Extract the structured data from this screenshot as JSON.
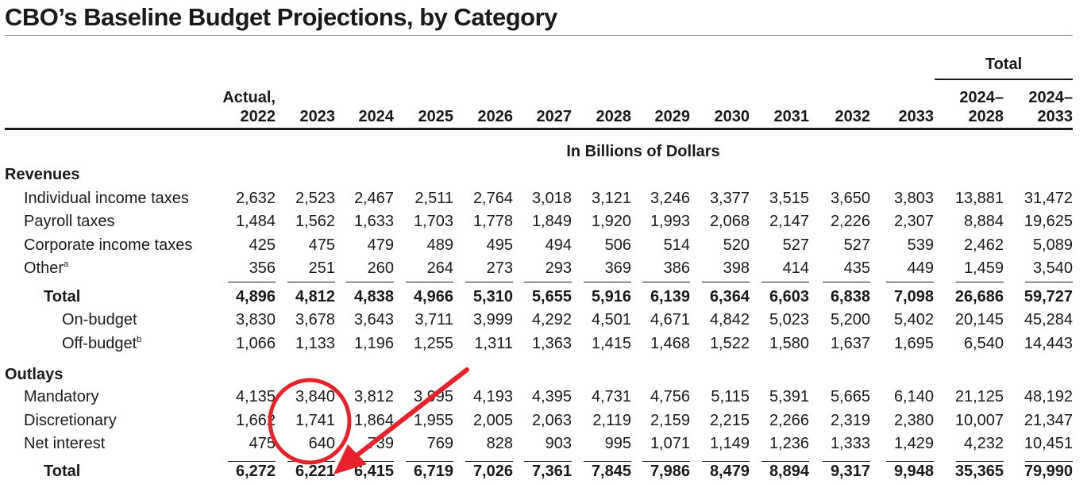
{
  "title": "CBO’s Baseline Budget Projections, by Category",
  "header": {
    "total_group": "Total",
    "columns": [
      {
        "line1": "Actual,",
        "line2": "2022"
      },
      {
        "line1": "",
        "line2": "2023"
      },
      {
        "line1": "",
        "line2": "2024"
      },
      {
        "line1": "",
        "line2": "2025"
      },
      {
        "line1": "",
        "line2": "2026"
      },
      {
        "line1": "",
        "line2": "2027"
      },
      {
        "line1": "",
        "line2": "2028"
      },
      {
        "line1": "",
        "line2": "2029"
      },
      {
        "line1": "",
        "line2": "2030"
      },
      {
        "line1": "",
        "line2": "2031"
      },
      {
        "line1": "",
        "line2": "2032"
      },
      {
        "line1": "",
        "line2": "2033"
      },
      {
        "line1": "2024–",
        "line2": "2028"
      },
      {
        "line1": "2024–",
        "line2": "2033"
      }
    ],
    "unit": "In Billions of Dollars"
  },
  "sections": {
    "revenues": "Revenues",
    "outlays": "Outlays"
  },
  "rows": {
    "individual_income_taxes": {
      "label": "Individual income taxes",
      "values": [
        "2,632",
        "2,523",
        "2,467",
        "2,511",
        "2,764",
        "3,018",
        "3,121",
        "3,246",
        "3,377",
        "3,515",
        "3,650",
        "3,803",
        "13,881",
        "31,472"
      ]
    },
    "payroll_taxes": {
      "label": "Payroll taxes",
      "values": [
        "1,484",
        "1,562",
        "1,633",
        "1,703",
        "1,778",
        "1,849",
        "1,920",
        "1,993",
        "2,068",
        "2,147",
        "2,226",
        "2,307",
        "8,884",
        "19,625"
      ]
    },
    "corporate_income_taxes": {
      "label": "Corporate income taxes",
      "values": [
        "425",
        "475",
        "479",
        "489",
        "495",
        "494",
        "506",
        "514",
        "520",
        "527",
        "527",
        "539",
        "2,462",
        "5,089"
      ]
    },
    "other": {
      "label": "Other",
      "note": "a",
      "values": [
        "356",
        "251",
        "260",
        "264",
        "273",
        "293",
        "369",
        "386",
        "398",
        "414",
        "435",
        "449",
        "1,459",
        "3,540"
      ]
    },
    "revenues_total": {
      "label": "Total",
      "values": [
        "4,896",
        "4,812",
        "4,838",
        "4,966",
        "5,310",
        "5,655",
        "5,916",
        "6,139",
        "6,364",
        "6,603",
        "6,838",
        "7,098",
        "26,686",
        "59,727"
      ]
    },
    "on_budget": {
      "label": "On-budget",
      "values": [
        "3,830",
        "3,678",
        "3,643",
        "3,711",
        "3,999",
        "4,292",
        "4,501",
        "4,671",
        "4,842",
        "5,023",
        "5,200",
        "5,402",
        "20,145",
        "45,284"
      ]
    },
    "off_budget": {
      "label": "Off-budget",
      "note": "b",
      "values": [
        "1,066",
        "1,133",
        "1,196",
        "1,255",
        "1,311",
        "1,363",
        "1,415",
        "1,468",
        "1,522",
        "1,580",
        "1,637",
        "1,695",
        "6,540",
        "14,443"
      ]
    },
    "mandatory": {
      "label": "Mandatory",
      "values": [
        "4,135",
        "3,840",
        "3,812",
        "3,995",
        "4,193",
        "4,395",
        "4,731",
        "4,756",
        "5,115",
        "5,391",
        "5,665",
        "6,140",
        "21,125",
        "48,192"
      ]
    },
    "discretionary": {
      "label": "Discretionary",
      "values": [
        "1,662",
        "1,741",
        "1,864",
        "1,955",
        "2,005",
        "2,063",
        "2,119",
        "2,159",
        "2,215",
        "2,266",
        "2,319",
        "2,380",
        "10,007",
        "21,347"
      ]
    },
    "net_interest": {
      "label": "Net interest",
      "values": [
        "475",
        "640",
        "739",
        "769",
        "828",
        "903",
        "995",
        "1,071",
        "1,149",
        "1,236",
        "1,333",
        "1,429",
        "4,232",
        "10,451"
      ]
    },
    "outlays_total": {
      "label": "Total",
      "values": [
        "6,272",
        "6,221",
        "6,415",
        "6,719",
        "7,026",
        "7,361",
        "7,845",
        "7,986",
        "8,479",
        "8,894",
        "9,317",
        "9,948",
        "35,365",
        "79,990"
      ]
    }
  },
  "annotation": {
    "circle_color": "#e8222d",
    "arrow_color": "#e8222d"
  }
}
